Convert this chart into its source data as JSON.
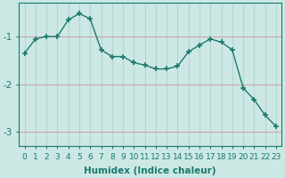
{
  "x": [
    0,
    1,
    2,
    3,
    4,
    5,
    6,
    7,
    8,
    9,
    10,
    11,
    12,
    13,
    14,
    15,
    16,
    17,
    18,
    19,
    20,
    21,
    22,
    23
  ],
  "y": [
    -1.35,
    -1.05,
    -1.0,
    -1.0,
    -0.65,
    -0.52,
    -0.63,
    -1.28,
    -1.42,
    -1.42,
    -1.55,
    -1.6,
    -1.68,
    -1.68,
    -1.62,
    -1.32,
    -1.18,
    -1.05,
    -1.12,
    -1.28,
    -2.08,
    -2.32,
    -2.65,
    -2.88
  ],
  "line_color": "#1a7a6e",
  "marker": "+",
  "marker_color": "#1a7a6e",
  "background_color": "#cce8e5",
  "grid_color_h": "#c8a8a8",
  "grid_color_v": "#b8d4d0",
  "xlabel": "Humidex (Indice chaleur)",
  "xlim": [
    -0.5,
    23.5
  ],
  "ylim": [
    -3.3,
    -0.3
  ],
  "yticks": [
    -3,
    -2,
    -1
  ],
  "xticks": [
    0,
    1,
    2,
    3,
    4,
    5,
    6,
    7,
    8,
    9,
    10,
    11,
    12,
    13,
    14,
    15,
    16,
    17,
    18,
    19,
    20,
    21,
    22,
    23
  ],
  "tick_color": "#1a7a6e",
  "label_fontsize": 7.5,
  "tick_fontsize": 6.5
}
